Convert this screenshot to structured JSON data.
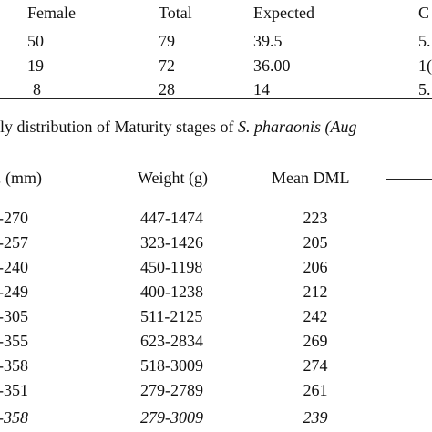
{
  "table1": {
    "headers": [
      "Female",
      "Total",
      "Expected",
      "C"
    ],
    "rows": [
      [
        "50",
        "79",
        "39.5",
        "5."
      ],
      [
        "19",
        "72",
        "36.00",
        "1("
      ],
      [
        "8",
        "28",
        "14",
        "5."
      ]
    ]
  },
  "caption": {
    "prefix": "ly distribution of Maturity stages of ",
    "species": "S. pharaonis",
    "suffix": " (Aug"
  },
  "table2": {
    "headers": [
      ". (mm)",
      "Weight (g)",
      "Mean DML"
    ],
    "rows": [
      [
        "-270",
        "447-1474",
        "223"
      ],
      [
        "-257",
        "323-1426",
        "205"
      ],
      [
        "-240",
        "450-1198",
        "206"
      ],
      [
        "-249",
        "400-1238",
        "212"
      ],
      [
        "-305",
        "511-2125",
        "242"
      ],
      [
        "-355",
        "623-2834",
        "269"
      ],
      [
        "-358",
        "518-3009",
        "274"
      ],
      [
        "-351",
        "279-2789",
        "261"
      ]
    ],
    "total_row": [
      "-358",
      "279-3009",
      "239"
    ]
  }
}
